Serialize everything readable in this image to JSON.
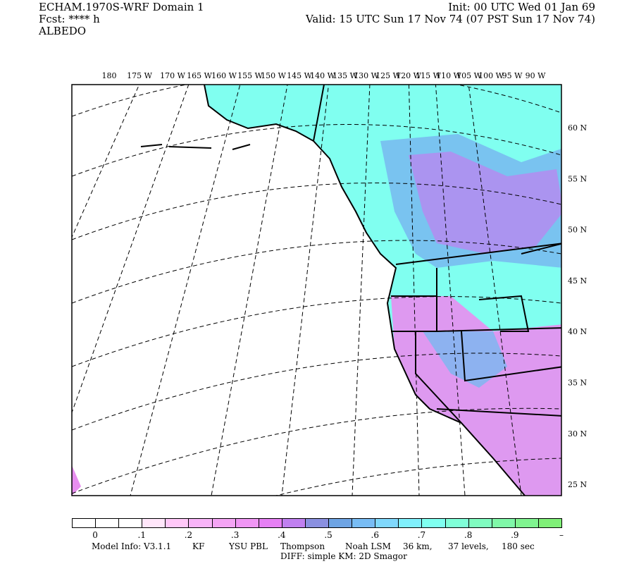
{
  "header": {
    "title": "ECHAM.1970S-WRF Domain 1",
    "forecast": "Fcst: **** h",
    "field": "ALBEDO",
    "init": "Init: 00 UTC Wed 01 Jan 69",
    "valid": "Valid: 15 UTC Sun 17 Nov 74 (07 PST Sun 17 Nov 74)"
  },
  "map": {
    "longitude_labels": [
      "180",
      "175 W",
      "170 W",
      "165 W",
      "160 W",
      "155 W",
      "150 W",
      "145 W",
      "140 W",
      "135 W",
      "130 W",
      "125 W",
      "120 W",
      "115 W",
      "110 W",
      "105 W",
      "100 W",
      "95 W",
      "90 W"
    ],
    "latitude_labels": [
      "60 N",
      "55 N",
      "50 N",
      "45 N",
      "40 N",
      "35 N",
      "30 N",
      "25 N"
    ],
    "colors": {
      "land_high": "#80fff0",
      "land_mid": "#78b8f0",
      "land_low": "#e88ef0",
      "grid": "#000000"
    }
  },
  "colorbar": {
    "colors": [
      "#ffffff",
      "#ffffff",
      "#ffffff",
      "#ffe6fa",
      "#ffc8f8",
      "#f8b4f8",
      "#f4a4f4",
      "#f096f4",
      "#e680f4",
      "#c080f0",
      "#8a90e0",
      "#6ea4e4",
      "#78bcf4",
      "#80d8fc",
      "#80f0fc",
      "#80fff0",
      "#80ffd8",
      "#80fcc0",
      "#80f8a8",
      "#80f490",
      "#80f078"
    ],
    "labels": [
      "0",
      ".1",
      ".2",
      ".3",
      ".4",
      ".5",
      ".6",
      ".7",
      ".8",
      ".9",
      "–"
    ]
  },
  "footer": {
    "model_info": "Model Info: V3.1.1",
    "cu": "KF",
    "pbl": "YSU PBL",
    "mp": "Thompson",
    "lsm": "Noah LSM",
    "res": "36 km,",
    "levels": "37 levels,",
    "dt": "180 sec",
    "diff": "DIFF: simple KM: 2D Smagor"
  }
}
